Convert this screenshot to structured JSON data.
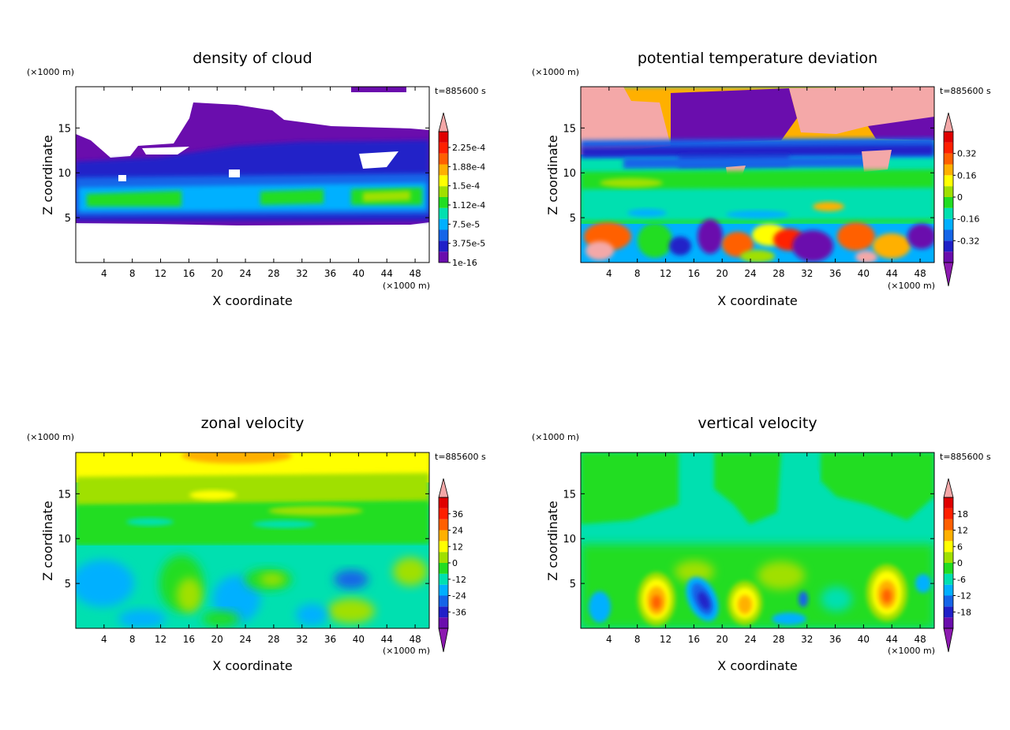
{
  "chart_data": [
    {
      "type": "heatmap",
      "title": "density of cloud",
      "xlabel": "X coordinate",
      "ylabel": "Z coordinate",
      "x_unit": "(×1000 m)",
      "y_unit": "(×1000 m)",
      "time_label": "t=885600 s",
      "xlim": [
        0,
        50
      ],
      "ylim": [
        0,
        19.6
      ],
      "xticks": [
        4,
        8,
        12,
        16,
        20,
        24,
        28,
        32,
        36,
        40,
        44,
        48
      ],
      "yticks": [
        5,
        10,
        15
      ],
      "colorbar": {
        "labels": [
          "1e-16",
          "3.75e-5",
          "7.5e-5",
          "1.12e-4",
          "1.5e-4",
          "1.88e-4",
          "2.25e-4"
        ],
        "colors": [
          "#6a0dad",
          "#2020c8",
          "#1565e8",
          "#00b0ff",
          "#00e0b0",
          "#22dd22",
          "#a0e000",
          "#ffff00",
          "#ffb000",
          "#ff6000",
          "#ff2000",
          "#e00000"
        ],
        "under_color": "#8c1ab0",
        "over_color": "#f4a8a8",
        "extend": "max"
      },
      "cloud_layer_z": [
        4.5,
        19.5
      ],
      "dense_band_z": [
        5.5,
        8.5
      ],
      "gaps": [
        "top-left sky clear above 12",
        "clear patch near x=43,z=11"
      ]
    },
    {
      "type": "heatmap",
      "title": "potential temperature deviation",
      "xlabel": "X coordinate",
      "ylabel": "Z coordinate",
      "x_unit": "(×1000 m)",
      "y_unit": "(×1000 m)",
      "time_label": "t=885600 s",
      "xlim": [
        0,
        50
      ],
      "ylim": [
        0,
        19.6
      ],
      "xticks": [
        4,
        8,
        12,
        16,
        20,
        24,
        28,
        32,
        36,
        40,
        44,
        48
      ],
      "yticks": [
        5,
        10,
        15
      ],
      "colorbar": {
        "labels": [
          "-0.32",
          "-0.16",
          "0",
          "0.16",
          "0.32"
        ],
        "colors": [
          "#6a0dad",
          "#2020c8",
          "#1565e8",
          "#00b0ff",
          "#00e0b0",
          "#22dd22",
          "#a0e000",
          "#ffff00",
          "#ffb000",
          "#ff6000",
          "#ff2000",
          "#e00000"
        ],
        "under_color": "#8c1ab0",
        "over_color": "#f4a8a8",
        "extend": "both"
      }
    },
    {
      "type": "heatmap",
      "title": "zonal velocity",
      "xlabel": "X coordinate",
      "ylabel": "Z coordinate",
      "x_unit": "(×1000 m)",
      "y_unit": "(×1000 m)",
      "time_label": "t=885600 s",
      "xlim": [
        0,
        50
      ],
      "ylim": [
        0,
        19.6
      ],
      "xticks": [
        4,
        8,
        12,
        16,
        20,
        24,
        28,
        32,
        36,
        40,
        44,
        48
      ],
      "yticks": [
        5,
        10,
        15
      ],
      "colorbar": {
        "labels": [
          "-36",
          "-24",
          "-12",
          "0",
          "12",
          "24",
          "36"
        ],
        "colors": [
          "#6a0dad",
          "#2020c8",
          "#1565e8",
          "#00b0ff",
          "#00e0b0",
          "#22dd22",
          "#a0e000",
          "#ffff00",
          "#ffb000",
          "#ff6000",
          "#ff2000",
          "#e00000"
        ],
        "under_color": "#8c1ab0",
        "over_color": "#f4a8a8",
        "extend": "both"
      }
    },
    {
      "type": "heatmap",
      "title": "vertical velocity",
      "xlabel": "X coordinate",
      "ylabel": "Z coordinate",
      "x_unit": "(×1000 m)",
      "y_unit": "(×1000 m)",
      "time_label": "t=885600 s",
      "xlim": [
        0,
        50
      ],
      "ylim": [
        0,
        19.6
      ],
      "xticks": [
        4,
        8,
        12,
        16,
        20,
        24,
        28,
        32,
        36,
        40,
        44,
        48
      ],
      "yticks": [
        5,
        10,
        15
      ],
      "colorbar": {
        "labels": [
          "-18",
          "-12",
          "-6",
          "0",
          "6",
          "12",
          "18"
        ],
        "colors": [
          "#6a0dad",
          "#2020c8",
          "#1565e8",
          "#00b0ff",
          "#00e0b0",
          "#22dd22",
          "#a0e000",
          "#ffff00",
          "#ffb000",
          "#ff6000",
          "#ff2000",
          "#e00000"
        ],
        "under_color": "#8c1ab0",
        "over_color": "#f4a8a8",
        "extend": "both"
      },
      "updraft_cores": [
        {
          "x": 10.5,
          "z": 3.5
        },
        {
          "x": 22.5,
          "z": 3.0
        },
        {
          "x": 43.5,
          "z": 4.0
        }
      ],
      "downdraft_cores": [
        {
          "x": 17.0,
          "z": 3.5
        }
      ]
    }
  ]
}
